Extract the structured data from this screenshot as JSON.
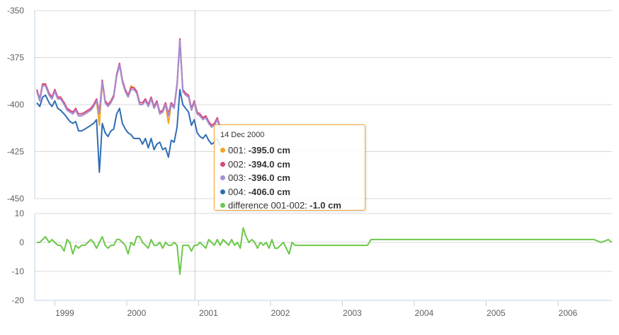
{
  "chart_data": [
    {
      "type": "line",
      "ylim": [
        -450,
        -350
      ],
      "yticks": [
        "-350",
        "-375",
        "-400",
        "-425",
        "-450"
      ],
      "grid": true,
      "x": [
        1998.75,
        1998.79,
        1998.83,
        1998.87,
        1998.92,
        1998.96,
        1999.0,
        1999.04,
        1999.08,
        1999.13,
        1999.17,
        1999.21,
        1999.25,
        1999.29,
        1999.33,
        1999.37,
        1999.42,
        1999.46,
        1999.5,
        1999.54,
        1999.58,
        1999.62,
        1999.66,
        1999.7,
        1999.74,
        1999.78,
        1999.82,
        1999.86,
        1999.9,
        1999.94,
        1999.98,
        2000.02,
        2000.06,
        2000.1,
        2000.14,
        2000.18,
        2000.22,
        2000.26,
        2000.3,
        2000.34,
        2000.38,
        2000.42,
        2000.46,
        2000.5,
        2000.54,
        2000.58,
        2000.62,
        2000.66,
        2000.7,
        2000.74,
        2000.78,
        2000.82,
        2000.86,
        2000.9,
        2000.94,
        2000.98,
        2001.02,
        2001.06,
        2001.1,
        2001.14,
        2001.18,
        2001.22,
        2001.26,
        2001.3
      ],
      "series": [
        {
          "name": "001",
          "color": "#f5a623",
          "values": [
            -393,
            -398,
            -389,
            -390,
            -395,
            -397,
            -392,
            -397,
            -396,
            -400,
            -402,
            -404,
            -405,
            -403,
            -406,
            -406,
            -405,
            -404,
            -403,
            -401,
            -398,
            -411,
            -388,
            -399,
            -401,
            -399,
            -396,
            -385,
            -379,
            -388,
            -393,
            -396,
            -390,
            -391,
            -393,
            -400,
            -400,
            -397,
            -401,
            -397,
            -402,
            -399,
            -405,
            -404,
            -400,
            -410,
            -400,
            -402,
            -390,
            -367,
            -393,
            -395,
            -396,
            -403,
            -399,
            -405,
            -406,
            -408,
            -407,
            -410,
            -412,
            -411,
            -408,
            -413
          ]
        },
        {
          "name": "002",
          "color": "#d9467a",
          "values": [
            -392,
            -397,
            -389,
            -389,
            -394,
            -396,
            -392,
            -396,
            -396,
            -399,
            -402,
            -403,
            -404,
            -402,
            -405,
            -405,
            -404,
            -403,
            -402,
            -400,
            -397,
            -404,
            -387,
            -398,
            -400,
            -398,
            -395,
            -384,
            -378,
            -387,
            -392,
            -395,
            -391,
            -391,
            -393,
            -399,
            -399,
            -397,
            -400,
            -396,
            -401,
            -398,
            -404,
            -403,
            -399,
            -405,
            -399,
            -401,
            -389,
            -365,
            -392,
            -394,
            -395,
            -402,
            -398,
            -404,
            -405,
            -407,
            -406,
            -409,
            -411,
            -410,
            -407,
            -412
          ]
        },
        {
          "name": "003",
          "color": "#a28fd6",
          "values": [
            -393,
            -398,
            -390,
            -390,
            -395,
            -397,
            -393,
            -397,
            -397,
            -400,
            -403,
            -404,
            -405,
            -403,
            -406,
            -406,
            -405,
            -404,
            -403,
            -401,
            -398,
            -405,
            -388,
            -399,
            -401,
            -399,
            -396,
            -385,
            -379,
            -388,
            -393,
            -396,
            -392,
            -392,
            -394,
            -400,
            -400,
            -398,
            -401,
            -397,
            -402,
            -399,
            -405,
            -404,
            -400,
            -406,
            -400,
            -402,
            -390,
            -366,
            -393,
            -395,
            -396,
            -403,
            -399,
            -405,
            -406,
            -408,
            -407,
            -410,
            -412,
            -411,
            -408,
            -413
          ]
        },
        {
          "name": "004",
          "color": "#2f6db5",
          "values": [
            -399,
            -401,
            -396,
            -395,
            -399,
            -401,
            -398,
            -402,
            -403,
            -405,
            -407,
            -409,
            -410,
            -409,
            -414,
            -414,
            -413,
            -412,
            -411,
            -410,
            -408,
            -436,
            -410,
            -415,
            -417,
            -414,
            -413,
            -405,
            -402,
            -410,
            -413,
            -415,
            -416,
            -418,
            -418,
            -418,
            -421,
            -418,
            -423,
            -418,
            -424,
            -421,
            -420,
            -424,
            -423,
            -428,
            -419,
            -420,
            -412,
            -392,
            -400,
            -402,
            -404,
            -411,
            -408,
            -415,
            -417,
            -418,
            -416,
            -419,
            -421,
            -420,
            -418,
            -422
          ]
        }
      ]
    },
    {
      "type": "line",
      "ylim": [
        -20,
        10
      ],
      "yticks": [
        "10",
        "0",
        "-10",
        "-20"
      ],
      "grid": true,
      "x": [
        1998.75,
        1998.79,
        1998.83,
        1998.87,
        1998.92,
        1998.96,
        1999.0,
        1999.04,
        1999.08,
        1999.13,
        1999.17,
        1999.21,
        1999.25,
        1999.29,
        1999.33,
        1999.37,
        1999.42,
        1999.46,
        1999.5,
        1999.54,
        1999.58,
        1999.62,
        1999.66,
        1999.7,
        1999.74,
        1999.78,
        1999.82,
        1999.86,
        1999.9,
        1999.94,
        1999.98,
        2000.02,
        2000.06,
        2000.1,
        2000.14,
        2000.18,
        2000.22,
        2000.26,
        2000.3,
        2000.34,
        2000.38,
        2000.42,
        2000.46,
        2000.5,
        2000.54,
        2000.58,
        2000.62,
        2000.66,
        2000.7,
        2000.74,
        2000.78,
        2000.82,
        2000.86,
        2000.9,
        2000.94,
        2000.98,
        2001.02,
        2001.06,
        2001.1,
        2001.14,
        2001.18,
        2001.22,
        2001.26,
        2001.3,
        2001.34,
        2001.38,
        2001.42,
        2001.46,
        2001.5,
        2001.54,
        2001.58,
        2001.62,
        2001.66,
        2001.7,
        2001.74,
        2001.78,
        2001.82,
        2001.86,
        2001.9,
        2001.94,
        2001.98,
        2002.02,
        2002.06,
        2002.1,
        2002.14,
        2002.18,
        2002.22,
        2002.26,
        2002.3,
        2002.34,
        2002.38,
        2002.45,
        2003.0,
        2003.35,
        2003.4,
        2006.5,
        2006.6,
        2006.7,
        2006.75
      ],
      "series": [
        {
          "name": "difference 001-002",
          "color": "#6cc84a",
          "values": [
            0,
            0,
            1,
            2,
            0,
            1,
            0,
            -1,
            -1,
            -3,
            1,
            0,
            -4,
            -1,
            -2,
            -1,
            -1,
            0,
            1,
            0,
            -2,
            0,
            2,
            -1,
            -2,
            -1,
            -1,
            1,
            1,
            0,
            -1,
            -4,
            0,
            -1,
            2,
            2,
            0,
            -1,
            -2,
            1,
            -1,
            -1,
            0,
            -2,
            0,
            -1,
            -1,
            0,
            -1,
            -11,
            -1,
            -1,
            -1,
            -3,
            -1,
            -1,
            0,
            -1,
            -2,
            1,
            0,
            -1,
            1,
            -1,
            1,
            0,
            -1,
            1,
            -1,
            0,
            -2,
            5,
            2,
            0,
            1,
            0,
            -2,
            0,
            -1,
            0,
            -2,
            1,
            -2,
            -2,
            -1,
            0,
            -2,
            -4,
            0,
            -1,
            -1,
            -1,
            -1,
            -1,
            1,
            1,
            0,
            1,
            0
          ]
        }
      ]
    }
  ],
  "x_axis": {
    "labels": [
      "1999",
      "2000",
      "2001",
      "2002",
      "2003",
      "2004",
      "2005",
      "2006"
    ],
    "positions": [
      1999,
      2000,
      2001,
      2002,
      2003,
      2004,
      2005,
      2006
    ],
    "range": [
      1998.72,
      2006.75
    ]
  },
  "crosshair_x": 2000.95,
  "tooltip": {
    "date": "14 Dec 2000",
    "rows": [
      {
        "name": "001:",
        "value": "-395.0 cm",
        "color": "#f5a623"
      },
      {
        "name": "002:",
        "value": "-394.0 cm",
        "color": "#d9467a"
      },
      {
        "name": "003:",
        "value": "-396.0 cm",
        "color": "#a28fd6"
      },
      {
        "name": "004:",
        "value": "-406.0 cm",
        "color": "#2f6db5"
      },
      {
        "name": "difference 001-002:",
        "value": "-1.0 cm",
        "color": "#6cc84a"
      }
    ]
  }
}
